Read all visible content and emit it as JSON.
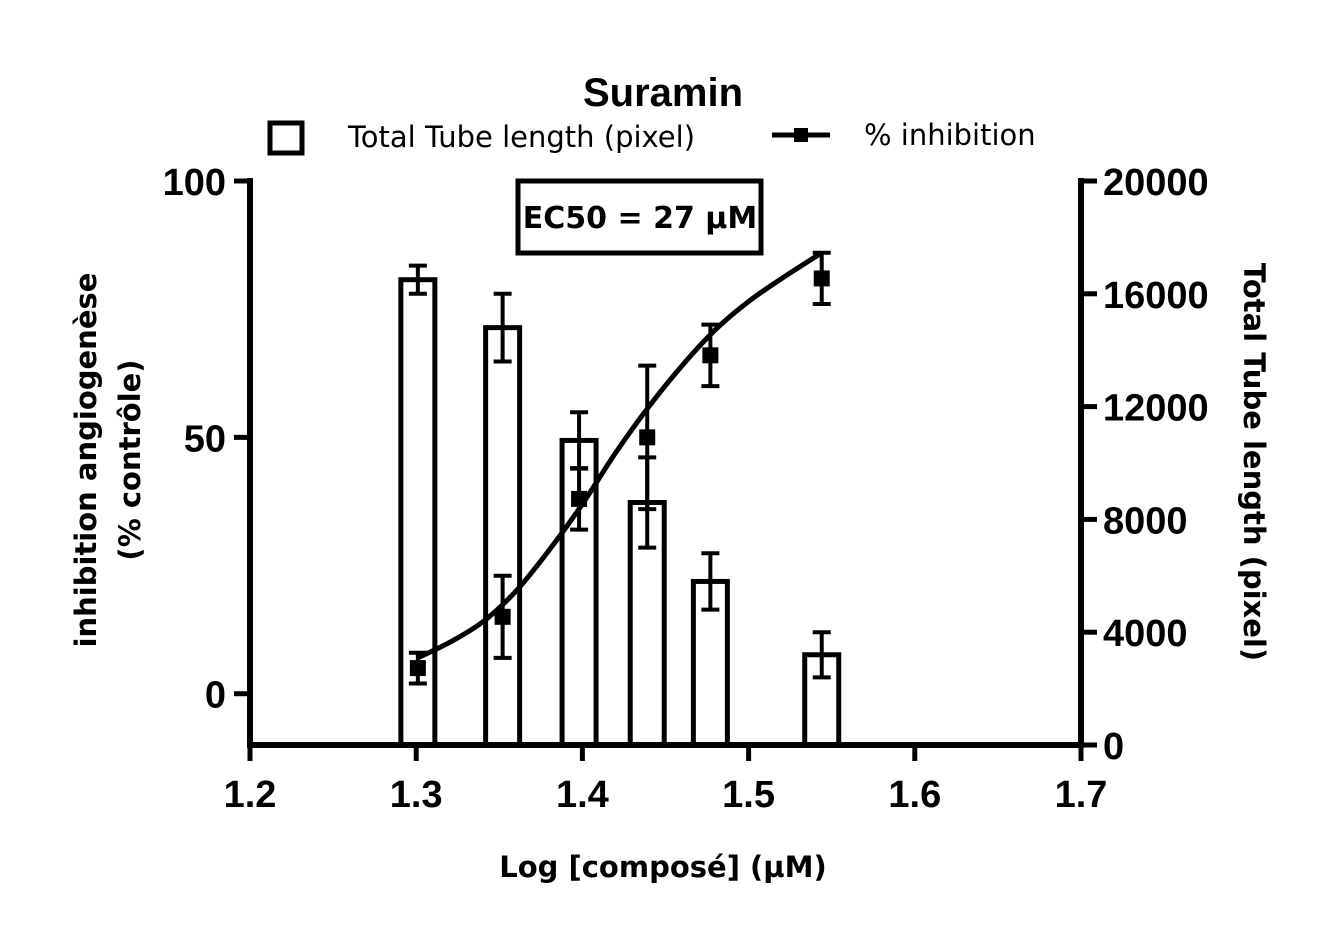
{
  "chart_data": {
    "type": "bar",
    "title": "Suramin",
    "xlabel": "Log [composé] (µM)",
    "ylabel_left": [
      "inhibition angiogenèse",
      "(% contrôle)"
    ],
    "ylabel_right": "Total Tube length (pixel)",
    "xlim": [
      1.2,
      1.7
    ],
    "ylim_left": [
      -10,
      100
    ],
    "ylim_right": [
      0,
      20000
    ],
    "x_ticks": [
      "1.2",
      "1.3",
      "1.4",
      "1.5",
      "1.6",
      "1.7"
    ],
    "y_left_ticks": [
      "0",
      "50",
      "100"
    ],
    "y_right_ticks": [
      "0",
      "4000",
      "8000",
      "12000",
      "16000",
      "20000"
    ],
    "legend": {
      "placement": "top",
      "bar_label": "Total Tube length (pixel)",
      "line_label": "% inhibition"
    },
    "annotation": "EC50 = 27 µM",
    "series": [
      {
        "name": "Total Tube length (pixel)",
        "type": "bar",
        "axis": "right",
        "x": [
          1.301,
          1.352,
          1.398,
          1.439,
          1.477,
          1.544
        ],
        "values": [
          16500,
          14800,
          10800,
          8600,
          5800,
          3200
        ],
        "errors": [
          500,
          1200,
          1000,
          1600,
          1000,
          800
        ]
      },
      {
        "name": "% inhibition",
        "type": "scatter",
        "axis": "left",
        "x": [
          1.301,
          1.352,
          1.398,
          1.439,
          1.477,
          1.544
        ],
        "values": [
          5,
          15,
          38,
          50,
          66,
          81
        ],
        "errors": [
          3,
          8,
          6,
          14,
          6,
          5
        ]
      }
    ],
    "fit_curve": {
      "axis": "left",
      "x": [
        1.301,
        1.32,
        1.34,
        1.36,
        1.38,
        1.4,
        1.42,
        1.44,
        1.46,
        1.48,
        1.5,
        1.52,
        1.544
      ],
      "y": [
        7,
        10,
        14,
        20,
        28,
        37,
        47,
        56,
        64,
        71,
        76.5,
        81,
        86
      ]
    }
  }
}
